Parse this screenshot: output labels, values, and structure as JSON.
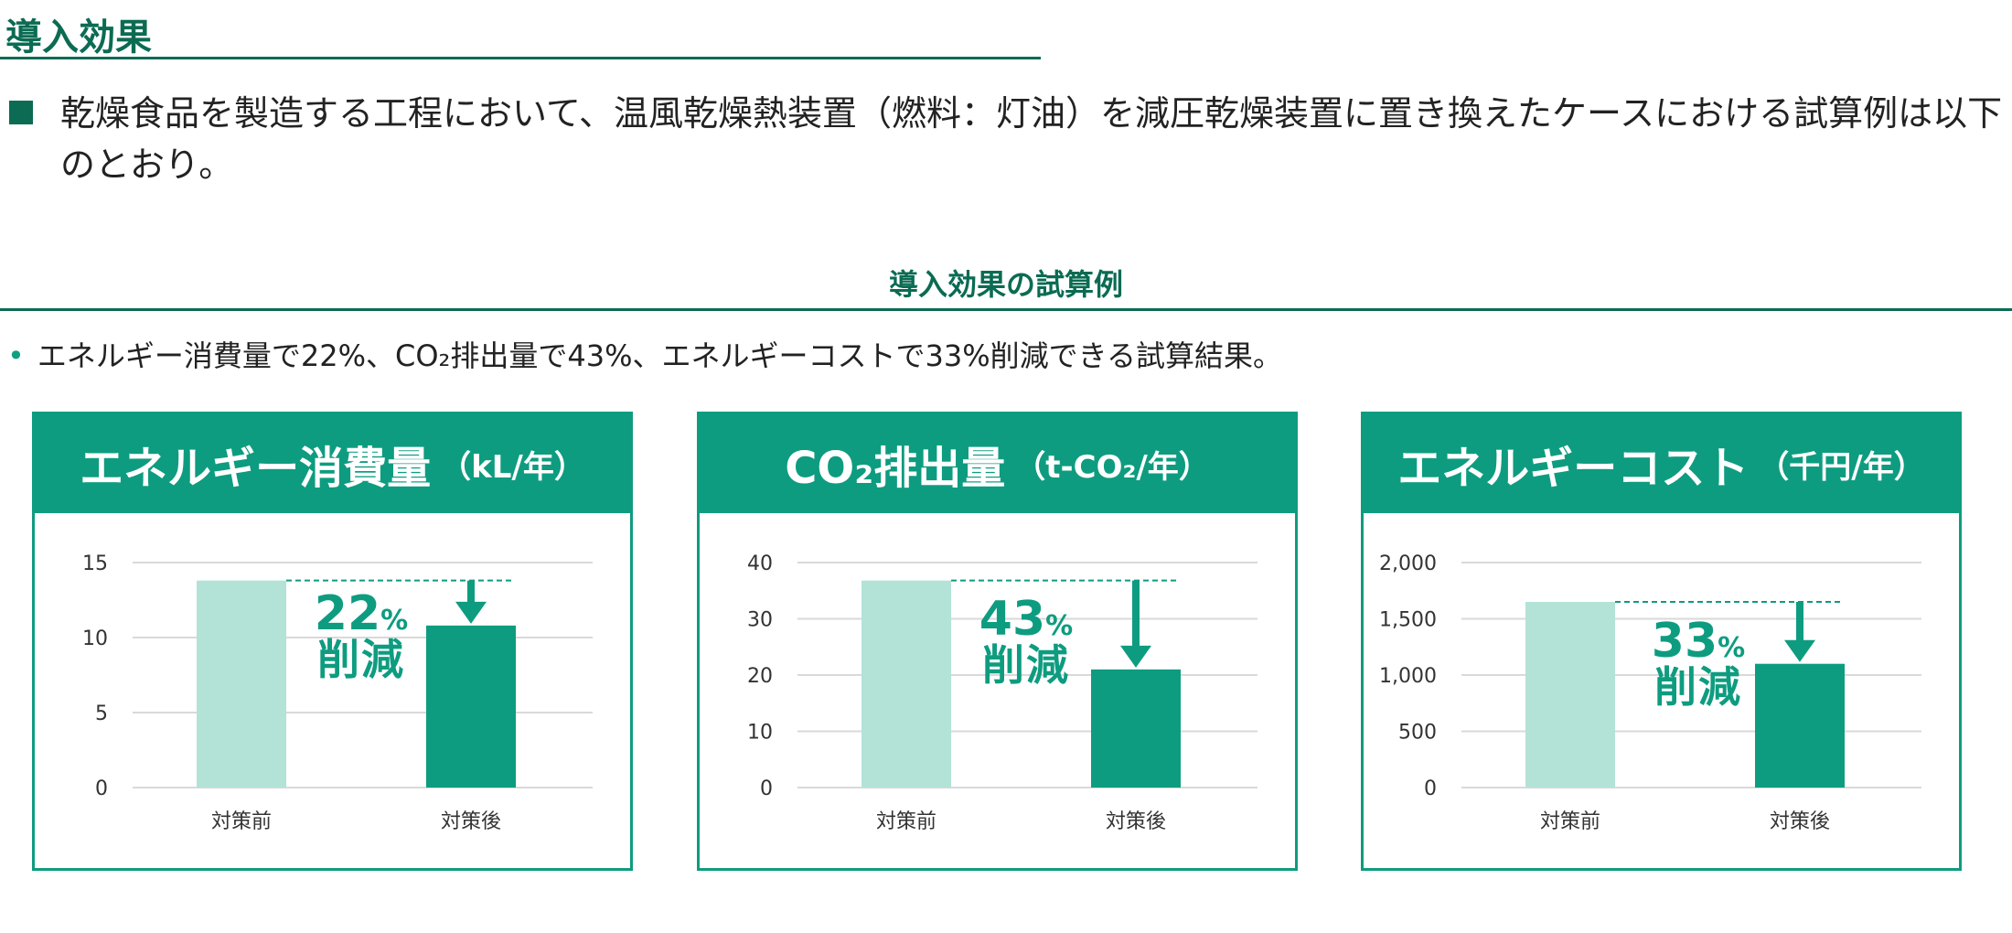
{
  "header": {
    "title": "導入効果",
    "intro": "乾燥食品を製造する工程において、温風乾燥熱装置（燃料：灯油）を減圧乾燥装置に置き換えたケースにおける試算例は以下のとおり。"
  },
  "section": {
    "title": "導入効果の試算例",
    "summary": "エネルギー消費量で22%、CO₂排出量で43%、エネルギーコストで33%削減できる試算結果。"
  },
  "colors": {
    "accent": "#0e9c80",
    "dark": "#0b6b53",
    "before_bar": "#b3e3d7",
    "after_bar": "#0e9c80",
    "grid": "#d9d9d9"
  },
  "chart_data": [
    {
      "type": "bar",
      "title_main": "エネルギー消費量",
      "title_unit": "（kL/年）",
      "categories": [
        "対策前",
        "対策後"
      ],
      "values": [
        13.8,
        10.8
      ],
      "ylim": [
        0,
        15
      ],
      "yticks": [
        0,
        5,
        10,
        15
      ],
      "ytick_labels": [
        "0",
        "5",
        "10",
        "15"
      ],
      "reduction_value": "22",
      "reduction_pct": "%",
      "reduction_word": "削減"
    },
    {
      "type": "bar",
      "title_main": "CO₂排出量",
      "title_unit": "（t-CO₂/年）",
      "categories": [
        "対策前",
        "対策後"
      ],
      "values": [
        36.8,
        21.0
      ],
      "ylim": [
        0,
        40
      ],
      "yticks": [
        0,
        10,
        20,
        30,
        40
      ],
      "ytick_labels": [
        "0",
        "10",
        "20",
        "30",
        "40"
      ],
      "reduction_value": "43",
      "reduction_pct": "%",
      "reduction_word": "削減"
    },
    {
      "type": "bar",
      "title_main": "エネルギーコスト",
      "title_unit": "（千円/年）",
      "categories": [
        "対策前",
        "対策後"
      ],
      "values": [
        1650,
        1100
      ],
      "ylim": [
        0,
        2000
      ],
      "yticks": [
        0,
        500,
        1000,
        1500,
        2000
      ],
      "ytick_labels": [
        "0",
        "500",
        "1,000",
        "1,500",
        "2,000"
      ],
      "reduction_value": "33",
      "reduction_pct": "%",
      "reduction_word": "削減"
    }
  ]
}
